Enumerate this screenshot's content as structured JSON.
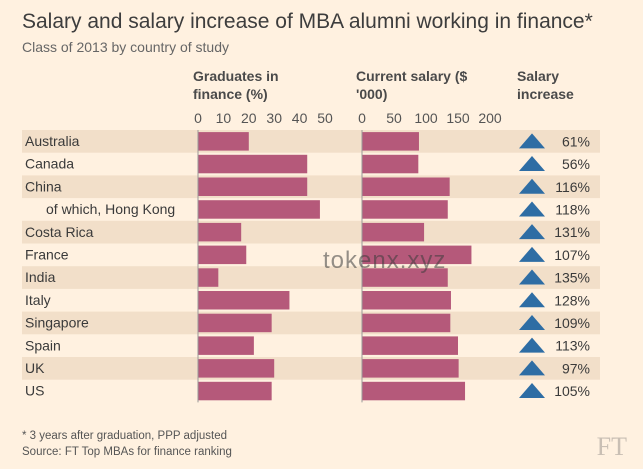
{
  "title": "Salary and salary increase of MBA alumni working in finance*",
  "subtitle": "Class of 2013 by country of study",
  "watermark": "tokenx.xyz",
  "logo": "FT",
  "footnote": "* 3 years after graduation, PPP adjusted",
  "source": "Source: FT Top MBAs for finance ranking",
  "colors": {
    "background": "#fff1e0",
    "band": "#f2dfc9",
    "bar": "#b5597a",
    "triangle": "#2e6da4"
  },
  "chart_data": [
    {
      "type": "bar",
      "orientation": "horizontal",
      "title": "Graduates in finance (%)",
      "categories": [
        "Australia",
        "Canada",
        "China",
        "of which, Hong Kong",
        "Costa Rica",
        "France",
        "India",
        "Italy",
        "Singapore",
        "Spain",
        "UK",
        "US"
      ],
      "values": [
        20,
        43,
        43,
        48,
        17,
        19,
        8,
        36,
        29,
        22,
        30,
        29
      ],
      "xlim": [
        0,
        50
      ],
      "ticks": [
        "0",
        "10",
        "20",
        "30",
        "40",
        "50"
      ]
    },
    {
      "type": "bar",
      "orientation": "horizontal",
      "title": "Current salary ($ '000)",
      "categories": [
        "Australia",
        "Canada",
        "China",
        "of which, Hong Kong",
        "Costa Rica",
        "France",
        "India",
        "Italy",
        "Singapore",
        "Spain",
        "UK",
        "US"
      ],
      "values": [
        89,
        88,
        137,
        134,
        97,
        171,
        134,
        139,
        138,
        150,
        151,
        161
      ],
      "xlim": [
        0,
        200
      ],
      "ticks": [
        "0",
        "50",
        "100",
        "150",
        "200"
      ]
    },
    {
      "type": "table",
      "title": "Salary increase",
      "categories": [
        "Australia",
        "Canada",
        "China",
        "of which, Hong Kong",
        "Costa Rica",
        "France",
        "India",
        "Italy",
        "Singapore",
        "Spain",
        "UK",
        "US"
      ],
      "values": [
        "61%",
        "56%",
        "116%",
        "118%",
        "131%",
        "107%",
        "135%",
        "128%",
        "109%",
        "113%",
        "97%",
        "105%"
      ],
      "marker": "up-triangle"
    }
  ]
}
